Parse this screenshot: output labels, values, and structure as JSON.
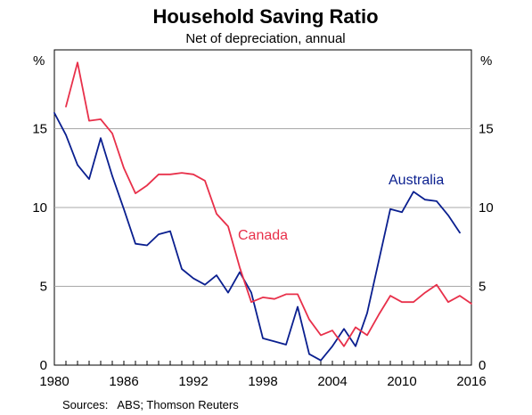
{
  "chart_data": {
    "type": "line",
    "title": "Household Saving Ratio",
    "subtitle": "Net of depreciation, annual",
    "unit_left": "%",
    "unit_right": "%",
    "source": "Sources:   ABS; Thomson Reuters",
    "xlim": [
      1980,
      2016
    ],
    "ylim": [
      0,
      20
    ],
    "x_ticks": [
      1980,
      1986,
      1992,
      1998,
      2004,
      2010,
      2016
    ],
    "y_ticks": [
      0,
      5,
      10,
      15
    ],
    "grid": true,
    "series": [
      {
        "name": "Australia",
        "color": "#0a1f8f",
        "x": [
          1980,
          1981,
          1982,
          1983,
          1984,
          1985,
          1986,
          1987,
          1988,
          1989,
          1990,
          1991,
          1992,
          1993,
          1994,
          1995,
          1996,
          1997,
          1998,
          1999,
          2000,
          2001,
          2002,
          2003,
          2004,
          2005,
          2006,
          2007,
          2008,
          2009,
          2010,
          2011,
          2012,
          2013,
          2014,
          2015
        ],
        "values": [
          16.0,
          14.6,
          12.7,
          11.8,
          14.4,
          12.0,
          9.9,
          7.7,
          7.6,
          8.3,
          8.5,
          6.1,
          5.5,
          5.1,
          5.7,
          4.6,
          5.9,
          4.6,
          1.7,
          1.5,
          1.3,
          3.7,
          0.7,
          0.3,
          1.2,
          2.3,
          1.2,
          3.3,
          6.6,
          9.9,
          9.7,
          11.0,
          10.5,
          10.4,
          9.5,
          8.4
        ]
      },
      {
        "name": "Canada",
        "color": "#e8304a",
        "x": [
          1981,
          1982,
          1983,
          1984,
          1985,
          1986,
          1987,
          1988,
          1989,
          1990,
          1991,
          1992,
          1993,
          1994,
          1995,
          1996,
          1997,
          1998,
          1999,
          2000,
          2001,
          2002,
          2003,
          2004,
          2005,
          2006,
          2007,
          2008,
          2009,
          2010,
          2011,
          2012,
          2013,
          2014,
          2015,
          2016
        ],
        "values": [
          16.4,
          19.2,
          15.5,
          15.6,
          14.7,
          12.5,
          10.9,
          11.4,
          12.1,
          12.1,
          12.2,
          12.1,
          11.7,
          9.6,
          8.8,
          6.2,
          4.0,
          4.3,
          4.2,
          4.5,
          4.5,
          2.9,
          1.9,
          2.2,
          1.2,
          2.4,
          1.9,
          3.2,
          4.4,
          4.0,
          4.0,
          4.6,
          5.1,
          4.0,
          4.4,
          3.9
        ]
      }
    ]
  }
}
